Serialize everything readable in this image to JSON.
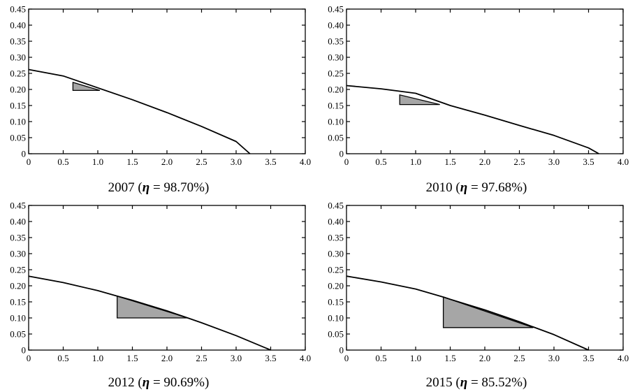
{
  "chart_data": [
    {
      "type": "line",
      "title_year": "2007",
      "title_open": "(",
      "title_symbol": "η",
      "title_value": " = 98.70%)",
      "xlim": [
        0,
        4.0
      ],
      "ylim": [
        0,
        0.45
      ],
      "xticks": [
        "0",
        "0.5",
        "1.0",
        "1.5",
        "2.0",
        "2.5",
        "3.0",
        "3.5",
        "4.0"
      ],
      "yticks": [
        "0",
        "0.05",
        "0.10",
        "0.15",
        "0.20",
        "0.25",
        "0.30",
        "0.35",
        "0.40",
        "0.45"
      ],
      "curve": {
        "x": [
          0,
          0.5,
          1.0,
          1.5,
          2.0,
          2.5,
          3.0,
          3.2
        ],
        "y": [
          0.262,
          0.242,
          0.205,
          0.168,
          0.128,
          0.085,
          0.038,
          0.0
        ]
      },
      "shaded_triangle": {
        "x": [
          0.64,
          0.64,
          1.03
        ],
        "y": [
          0.197,
          0.222,
          0.197
        ]
      },
      "colors": {
        "curve": "#000000",
        "fill": "#a6a6a6"
      }
    },
    {
      "type": "line",
      "title_year": "2010",
      "title_open": "(",
      "title_symbol": "η",
      "title_value": " = 97.68%)",
      "xlim": [
        0,
        4.0
      ],
      "ylim": [
        0,
        0.45
      ],
      "xticks": [
        "0",
        "0.5",
        "1.0",
        "1.5",
        "2.0",
        "2.5",
        "3.0",
        "3.5",
        "4.0"
      ],
      "yticks": [
        "0",
        "0.05",
        "0.10",
        "0.15",
        "0.20",
        "0.25",
        "0.30",
        "0.35",
        "0.40",
        "0.45"
      ],
      "curve": {
        "x": [
          0,
          0.5,
          1.0,
          1.5,
          2.0,
          2.5,
          3.0,
          3.5,
          3.65
        ],
        "y": [
          0.212,
          0.202,
          0.188,
          0.15,
          0.12,
          0.088,
          0.057,
          0.018,
          0.0
        ]
      },
      "shaded_triangle": {
        "x": [
          0.77,
          0.77,
          1.35
        ],
        "y": [
          0.153,
          0.183,
          0.153
        ]
      },
      "colors": {
        "curve": "#000000",
        "fill": "#a6a6a6"
      }
    },
    {
      "type": "line",
      "title_year": "2012",
      "title_open": "(",
      "title_symbol": "η",
      "title_value": " = 90.69%)",
      "xlim": [
        0,
        4.0
      ],
      "ylim": [
        0,
        0.45
      ],
      "xticks": [
        "0",
        "0.5",
        "1.0",
        "1.5",
        "2.0",
        "2.5",
        "3.0",
        "3.5",
        "4.0"
      ],
      "yticks": [
        "0",
        "0.05",
        "0.10",
        "0.15",
        "0.20",
        "0.25",
        "0.30",
        "0.35",
        "0.40",
        "0.45"
      ],
      "curve": {
        "x": [
          0,
          0.5,
          1.0,
          1.28,
          1.5,
          2.0,
          2.3,
          2.5,
          3.0,
          3.5
        ],
        "y": [
          0.23,
          0.21,
          0.185,
          0.168,
          0.155,
          0.122,
          0.1,
          0.085,
          0.045,
          0.0
        ]
      },
      "shaded_triangle": {
        "x": [
          1.28,
          1.28,
          2.3
        ],
        "y": [
          0.1,
          0.168,
          0.1
        ]
      },
      "colors": {
        "curve": "#000000",
        "fill": "#a6a6a6"
      }
    },
    {
      "type": "line",
      "title_year": "2015",
      "title_open": "(",
      "title_symbol": "η",
      "title_value": " = 85.52%)",
      "xlim": [
        0,
        4.0
      ],
      "ylim": [
        0,
        0.45
      ],
      "xticks": [
        "0",
        "0.5",
        "1.0",
        "1.5",
        "2.0",
        "2.5",
        "3.0",
        "3.5",
        "4.0"
      ],
      "yticks": [
        "0",
        "0.05",
        "0.10",
        "0.15",
        "0.20",
        "0.25",
        "0.30",
        "0.35",
        "0.40",
        "0.45"
      ],
      "curve": {
        "x": [
          0,
          0.5,
          1.0,
          1.4,
          1.5,
          2.0,
          2.5,
          2.7,
          3.0,
          3.5
        ],
        "y": [
          0.23,
          0.212,
          0.19,
          0.165,
          0.158,
          0.125,
          0.088,
          0.072,
          0.048,
          0.0
        ]
      },
      "shaded_triangle": {
        "x": [
          1.4,
          1.4,
          2.7
        ],
        "y": [
          0.07,
          0.165,
          0.07
        ]
      },
      "colors": {
        "curve": "#000000",
        "fill": "#a6a6a6"
      }
    }
  ]
}
